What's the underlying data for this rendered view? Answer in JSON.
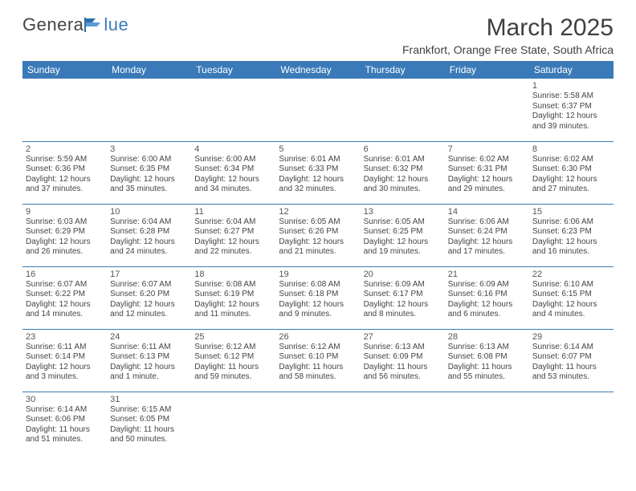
{
  "logo": {
    "part1": "Genera",
    "part2": "lue"
  },
  "title": "March 2025",
  "location": "Frankfort, Orange Free State, South Africa",
  "header_bg": "#3a7ab8",
  "weekdays": [
    "Sunday",
    "Monday",
    "Tuesday",
    "Wednesday",
    "Thursday",
    "Friday",
    "Saturday"
  ],
  "days": {
    "1": {
      "sr": "5:58 AM",
      "ss": "6:37 PM",
      "dl": "12 hours and 39 minutes."
    },
    "2": {
      "sr": "5:59 AM",
      "ss": "6:36 PM",
      "dl": "12 hours and 37 minutes."
    },
    "3": {
      "sr": "6:00 AM",
      "ss": "6:35 PM",
      "dl": "12 hours and 35 minutes."
    },
    "4": {
      "sr": "6:00 AM",
      "ss": "6:34 PM",
      "dl": "12 hours and 34 minutes."
    },
    "5": {
      "sr": "6:01 AM",
      "ss": "6:33 PM",
      "dl": "12 hours and 32 minutes."
    },
    "6": {
      "sr": "6:01 AM",
      "ss": "6:32 PM",
      "dl": "12 hours and 30 minutes."
    },
    "7": {
      "sr": "6:02 AM",
      "ss": "6:31 PM",
      "dl": "12 hours and 29 minutes."
    },
    "8": {
      "sr": "6:02 AM",
      "ss": "6:30 PM",
      "dl": "12 hours and 27 minutes."
    },
    "9": {
      "sr": "6:03 AM",
      "ss": "6:29 PM",
      "dl": "12 hours and 26 minutes."
    },
    "10": {
      "sr": "6:04 AM",
      "ss": "6:28 PM",
      "dl": "12 hours and 24 minutes."
    },
    "11": {
      "sr": "6:04 AM",
      "ss": "6:27 PM",
      "dl": "12 hours and 22 minutes."
    },
    "12": {
      "sr": "6:05 AM",
      "ss": "6:26 PM",
      "dl": "12 hours and 21 minutes."
    },
    "13": {
      "sr": "6:05 AM",
      "ss": "6:25 PM",
      "dl": "12 hours and 19 minutes."
    },
    "14": {
      "sr": "6:06 AM",
      "ss": "6:24 PM",
      "dl": "12 hours and 17 minutes."
    },
    "15": {
      "sr": "6:06 AM",
      "ss": "6:23 PM",
      "dl": "12 hours and 16 minutes."
    },
    "16": {
      "sr": "6:07 AM",
      "ss": "6:22 PM",
      "dl": "12 hours and 14 minutes."
    },
    "17": {
      "sr": "6:07 AM",
      "ss": "6:20 PM",
      "dl": "12 hours and 12 minutes."
    },
    "18": {
      "sr": "6:08 AM",
      "ss": "6:19 PM",
      "dl": "12 hours and 11 minutes."
    },
    "19": {
      "sr": "6:08 AM",
      "ss": "6:18 PM",
      "dl": "12 hours and 9 minutes."
    },
    "20": {
      "sr": "6:09 AM",
      "ss": "6:17 PM",
      "dl": "12 hours and 8 minutes."
    },
    "21": {
      "sr": "6:09 AM",
      "ss": "6:16 PM",
      "dl": "12 hours and 6 minutes."
    },
    "22": {
      "sr": "6:10 AM",
      "ss": "6:15 PM",
      "dl": "12 hours and 4 minutes."
    },
    "23": {
      "sr": "6:11 AM",
      "ss": "6:14 PM",
      "dl": "12 hours and 3 minutes."
    },
    "24": {
      "sr": "6:11 AM",
      "ss": "6:13 PM",
      "dl": "12 hours and 1 minute."
    },
    "25": {
      "sr": "6:12 AM",
      "ss": "6:12 PM",
      "dl": "11 hours and 59 minutes."
    },
    "26": {
      "sr": "6:12 AM",
      "ss": "6:10 PM",
      "dl": "11 hours and 58 minutes."
    },
    "27": {
      "sr": "6:13 AM",
      "ss": "6:09 PM",
      "dl": "11 hours and 56 minutes."
    },
    "28": {
      "sr": "6:13 AM",
      "ss": "6:08 PM",
      "dl": "11 hours and 55 minutes."
    },
    "29": {
      "sr": "6:14 AM",
      "ss": "6:07 PM",
      "dl": "11 hours and 53 minutes."
    },
    "30": {
      "sr": "6:14 AM",
      "ss": "6:06 PM",
      "dl": "11 hours and 51 minutes."
    },
    "31": {
      "sr": "6:15 AM",
      "ss": "6:05 PM",
      "dl": "11 hours and 50 minutes."
    }
  },
  "labels": {
    "sunrise": "Sunrise: ",
    "sunset": "Sunset: ",
    "daylight": "Daylight: "
  },
  "layout": {
    "first_weekday_index": 6,
    "days_in_month": 31,
    "rows": 6,
    "cols": 7
  },
  "styling": {
    "page_bg": "#ffffff",
    "title_fontsize": 30,
    "location_fontsize": 14,
    "weekday_fontsize": 12,
    "daynum_fontsize": 11,
    "dayinfo_fontsize": 10,
    "cell_border_color": "#3a7ab8",
    "text_color": "#444444"
  }
}
